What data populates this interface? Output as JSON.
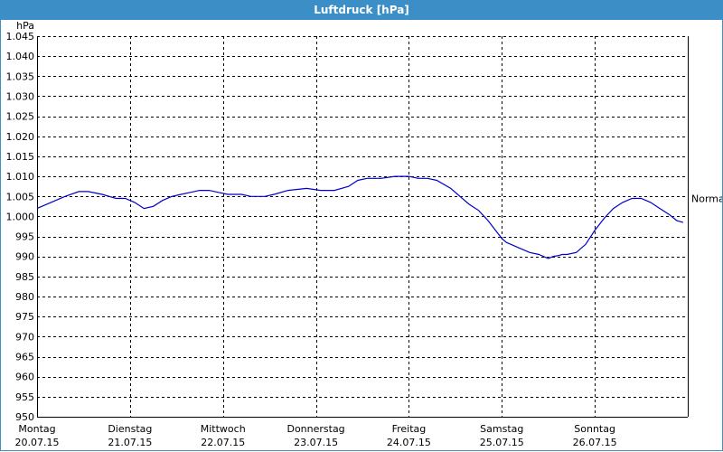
{
  "window": {
    "title": "Luftdruck [hPa]"
  },
  "chart_data": {
    "type": "line",
    "title": "Luftdruck [hPa]",
    "ylabel": "hPa",
    "ylim": [
      950,
      1045
    ],
    "yticks": [
      950,
      955,
      960,
      965,
      970,
      975,
      980,
      985,
      990,
      995,
      1000,
      1005,
      1010,
      1015,
      1020,
      1025,
      1030,
      1035,
      1040,
      1045
    ],
    "ytick_labels": [
      "950",
      "955",
      "960",
      "965",
      "970",
      "975",
      "980",
      "985",
      "990",
      "995",
      "1.000",
      "1.005",
      "1.010",
      "1.015",
      "1.020",
      "1.025",
      "1.030",
      "1.035",
      "1.040",
      "1.045"
    ],
    "xlim": [
      0,
      7
    ],
    "x_unit": "days since Montag 20.07.15 00:00",
    "xticks": [
      {
        "day": "Montag",
        "date": "20.07.15"
      },
      {
        "day": "Dienstag",
        "date": "21.07.15"
      },
      {
        "day": "Mittwoch",
        "date": "22.07.15"
      },
      {
        "day": "Donnerstag",
        "date": "23.07.15"
      },
      {
        "day": "Freitag",
        "date": "24.07.15"
      },
      {
        "day": "Samstag",
        "date": "25.07.15"
      },
      {
        "day": "Sonntag",
        "date": "26.07.15"
      }
    ],
    "grid": true,
    "reference_line": {
      "label": "Normal",
      "value": 1004.5
    },
    "series": [
      {
        "color": "#0000cc",
        "x": [
          0.0,
          0.15,
          0.3,
          0.45,
          0.55,
          0.7,
          0.85,
          0.95,
          1.05,
          1.15,
          1.25,
          1.35,
          1.45,
          1.55,
          1.65,
          1.75,
          1.85,
          1.95,
          2.05,
          2.2,
          2.3,
          2.45,
          2.55,
          2.7,
          2.9,
          3.05,
          3.2,
          3.35,
          3.45,
          3.55,
          3.7,
          3.85,
          4.0,
          4.1,
          4.2,
          4.3,
          4.45,
          4.55,
          4.65,
          4.75,
          4.85,
          4.95,
          5.0,
          5.05,
          5.1,
          5.2,
          5.3,
          5.4,
          5.5,
          5.55,
          5.6,
          5.65,
          5.7,
          5.8,
          5.9,
          6.0,
          6.1,
          6.2,
          6.3,
          6.4,
          6.5,
          6.6,
          6.7,
          6.8,
          6.88,
          6.95
        ],
        "y": [
          1002.0,
          1003.5,
          1005.0,
          1006.2,
          1006.2,
          1005.5,
          1004.5,
          1004.5,
          1003.5,
          1002.0,
          1002.5,
          1004.0,
          1005.0,
          1005.5,
          1006.0,
          1006.5,
          1006.5,
          1006.0,
          1005.5,
          1005.5,
          1005.0,
          1005.0,
          1005.5,
          1006.5,
          1007.0,
          1006.5,
          1006.5,
          1007.5,
          1009.0,
          1009.5,
          1009.5,
          1010.0,
          1010.0,
          1009.5,
          1009.5,
          1009.0,
          1007.0,
          1005.0,
          1003.0,
          1001.5,
          999.0,
          996.0,
          994.5,
          993.5,
          993.0,
          992.0,
          991.0,
          990.5,
          989.5,
          990.0,
          990.2,
          990.5,
          990.5,
          991.0,
          993.0,
          996.5,
          999.5,
          1002.0,
          1003.5,
          1004.5,
          1004.5,
          1003.5,
          1002.0,
          1000.5,
          999.0,
          998.5
        ]
      }
    ]
  }
}
